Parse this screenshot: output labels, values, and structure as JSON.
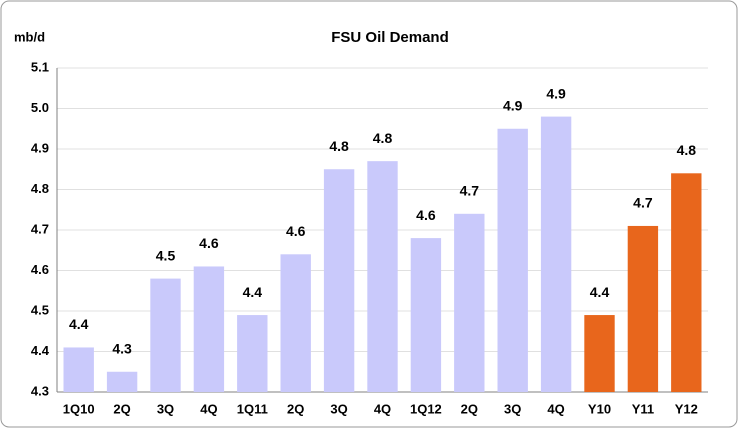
{
  "chart_data": {
    "type": "bar",
    "title": "FSU Oil Demand",
    "ylabel": "mb/d",
    "categories": [
      "1Q10",
      "2Q",
      "3Q",
      "4Q",
      "1Q11",
      "2Q",
      "3Q",
      "4Q",
      "1Q12",
      "2Q",
      "3Q",
      "4Q",
      "Y10",
      "Y11",
      "Y12"
    ],
    "values": [
      4.36,
      4.3,
      4.53,
      4.56,
      4.44,
      4.59,
      4.8,
      4.82,
      4.63,
      4.69,
      4.9,
      4.93,
      4.44,
      4.66,
      4.79
    ],
    "value_labels": [
      "4.4",
      "4.3",
      "4.5",
      "4.6",
      "4.4",
      "4.6",
      "4.8",
      "4.8",
      "4.6",
      "4.7",
      "4.9",
      "4.9",
      "4.4",
      "4.7",
      "4.8"
    ],
    "colors": [
      "#c9c9fb",
      "#c9c9fb",
      "#c9c9fb",
      "#c9c9fb",
      "#c9c9fb",
      "#c9c9fb",
      "#c9c9fb",
      "#c9c9fb",
      "#c9c9fb",
      "#c9c9fb",
      "#c9c9fb",
      "#c9c9fb",
      "#e8661c",
      "#e8661c",
      "#e8661c"
    ],
    "ylim": [
      4.25,
      5.05
    ],
    "yticks": [
      {
        "value": 4.25,
        "label": "4.3"
      },
      {
        "value": 4.35,
        "label": "4.4"
      },
      {
        "value": 4.45,
        "label": "4.5"
      },
      {
        "value": 4.55,
        "label": "4.6"
      },
      {
        "value": 4.65,
        "label": "4.7"
      },
      {
        "value": 4.75,
        "label": "4.8"
      },
      {
        "value": 4.85,
        "label": "4.9"
      },
      {
        "value": 4.95,
        "label": "5.0"
      },
      {
        "value": 5.05,
        "label": "5.1"
      }
    ],
    "grid": true
  }
}
